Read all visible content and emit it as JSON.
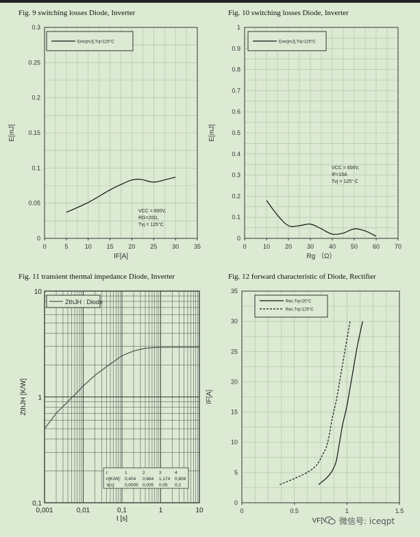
{
  "figures": [
    {
      "caption": "Fig. 9 switching losses Diode, Inverter",
      "chart_data": {
        "type": "line",
        "xlabel": "IF[A]",
        "ylabel": "E[mJ]",
        "xlim": [
          0,
          35
        ],
        "ylim": [
          0,
          0.3
        ],
        "xticks": [
          "0",
          "5",
          "10",
          "15",
          "20",
          "25",
          "30",
          "35"
        ],
        "yticks": [
          "0",
          "0.05",
          "0.1",
          "0.15",
          "0.2",
          "0.25",
          "0.3"
        ],
        "grid": true,
        "legend": "top-left",
        "series": [
          {
            "name": "Erec[mJ],Tvj=125°C",
            "style": "solid",
            "x": [
              5,
              10,
              15,
              18,
              20,
              22,
              25,
              28,
              30
            ],
            "y": [
              0.037,
              0.051,
              0.069,
              0.078,
              0.083,
              0.084,
              0.08,
              0.084,
              0.087
            ]
          }
        ],
        "annotation": [
          "VCC = 600V,",
          "RG=20Ω,",
          "Tvj = 125°C"
        ]
      }
    },
    {
      "caption": "Fig. 10  switching losses Diode, Inverter",
      "chart_data": {
        "type": "line",
        "xlabel": "Rg （Ω）",
        "ylabel": "E[mJ]",
        "xlim": [
          0,
          70
        ],
        "ylim": [
          0,
          1
        ],
        "xticks": [
          "0",
          "10",
          "20",
          "30",
          "40",
          "50",
          "60",
          "70"
        ],
        "yticks": [
          "0",
          "0.1",
          "0.2",
          "0.3",
          "0.4",
          "0.5",
          "0.6",
          "0.7",
          "0.8",
          "0.9",
          "1"
        ],
        "grid": true,
        "legend": "top-left",
        "series": [
          {
            "name": "Erec[mJ],Tvj=125°C",
            "style": "solid",
            "x": [
              10,
              15,
              20,
              25,
              30,
              35,
              40,
              45,
              50,
              55,
              60
            ],
            "y": [
              0.18,
              0.11,
              0.06,
              0.06,
              0.068,
              0.045,
              0.02,
              0.025,
              0.045,
              0.035,
              0.01
            ]
          }
        ],
        "annotation": [
          "VCC = 600V,",
          "IF=15A",
          "Tvj = 125° C"
        ]
      }
    },
    {
      "caption": "Fig. 11  transient thermal impedance Diode, Inverter",
      "chart_data": {
        "type": "line",
        "xscale": "log",
        "yscale": "log",
        "xlabel": "t [s]",
        "ylabel": "ZthJH [K/W]",
        "xlim": [
          0.001,
          10
        ],
        "ylim": [
          0.1,
          10
        ],
        "xticks": [
          "0,001",
          "0,01",
          "0,1",
          "1",
          "10"
        ],
        "yticks": [
          "0,1",
          "1",
          "10"
        ],
        "grid": true,
        "legend": "top-left",
        "series": [
          {
            "name": "ZthJH : Diode",
            "style": "solid",
            "x": [
              0.001,
              0.002,
              0.005,
              0.01,
              0.02,
              0.05,
              0.1,
              0.2,
              0.4,
              0.7,
              1,
              2,
              5,
              10
            ],
            "y": [
              0.5,
              0.7,
              0.98,
              1.27,
              1.6,
              2.05,
              2.45,
              2.72,
              2.88,
              2.93,
              2.94,
              2.95,
              2.95,
              2.95
            ]
          }
        ],
        "table": {
          "header": [
            "i:",
            "1",
            "2",
            "3",
            "4"
          ],
          "rows": [
            [
              "ri[K/W]:",
              "0,404",
              "0,664",
              "1,174",
              "0,808"
            ],
            [
              "τi[s]:",
              "0,0005",
              "0,005",
              "0,05",
              "0,2"
            ]
          ]
        }
      }
    },
    {
      "caption": "Fig. 12  forward characteristic of  Diode, Rectifier",
      "chart_data": {
        "type": "line",
        "xlabel": "VF[V]",
        "ylabel": "IF[A]",
        "xlim": [
          0,
          1.5
        ],
        "ylim": [
          0,
          35
        ],
        "xticks": [
          "0",
          "0.5",
          "1",
          "1.5"
        ],
        "yticks": [
          "0",
          "5",
          "10",
          "15",
          "20",
          "25",
          "30",
          "35"
        ],
        "grid": true,
        "legend": "top-left",
        "series": [
          {
            "name": "Rec,Tvj=25°C",
            "style": "solid",
            "x": [
              0.73,
              0.8,
              0.85,
              0.88,
              0.9,
              0.93,
              0.96,
              1.0,
              1.05,
              1.1,
              1.15
            ],
            "y": [
              3,
              4,
              5,
              6,
              7,
              10,
              13,
              16,
              21,
              26,
              30
            ]
          },
          {
            "name": "Rec,Tvj=125°C",
            "style": "dashed",
            "x": [
              0.36,
              0.5,
              0.62,
              0.7,
              0.74,
              0.77,
              0.8,
              0.83,
              0.86,
              0.9,
              0.93,
              0.96,
              1.0,
              1.03
            ],
            "y": [
              3,
              4,
              5,
              6,
              7,
              8,
              9,
              11,
              14,
              17,
              20,
              23,
              27,
              30
            ]
          }
        ]
      }
    }
  ],
  "watermark": {
    "text": "微信号: iceqpt",
    "icon": "wechat-icon"
  }
}
